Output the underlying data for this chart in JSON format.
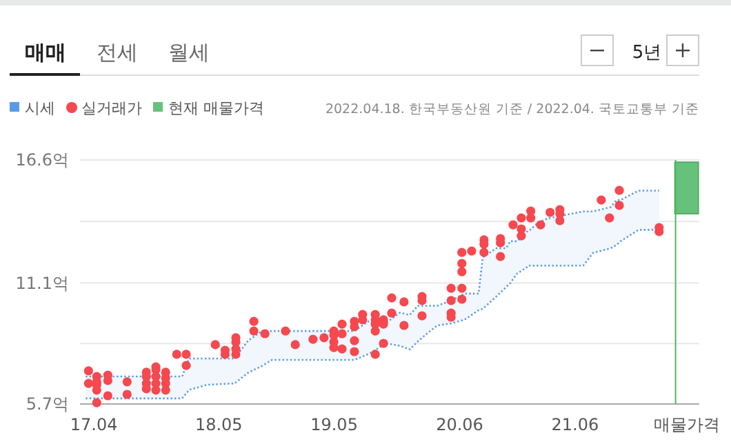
{
  "chart_data": {
    "type": "scatter",
    "annotations": [
      "매매",
      "전세",
      "월세",
      "5년",
      "2022.04.18. 한국부동산원 기준 / 2022.04. 국토교통부 기준"
    ],
    "xlim": [
      "2017-02-16",
      "2022-06-29"
    ],
    "xticks": [
      {
        "value": "2017-04-01",
        "label": "17.04"
      },
      {
        "value": "2018-05-01",
        "label": "18.05"
      },
      {
        "value": "2019-05-01",
        "label": "19.05"
      },
      {
        "value": "2020-06-01",
        "label": "20.06"
      },
      {
        "value": "2021-06-01",
        "label": "21.06"
      },
      {
        "value": "2022-05-20",
        "label": "매물가격"
      }
    ],
    "ylim": [
      5.7,
      16.6
    ],
    "yticks": [
      {
        "value": 5.7,
        "label": "5.7억"
      },
      {
        "value": 8.4,
        "label": null
      },
      {
        "value": 11.1,
        "label": "11.1억"
      },
      {
        "value": 13.85,
        "label": null
      },
      {
        "value": 16.6,
        "label": "16.6억"
      }
    ],
    "grid": "y",
    "legend": "top left",
    "ref_lines": [
      {
        "axis": "x",
        "value": "2022-04-15",
        "color": "#4cb85c"
      }
    ],
    "series": [
      {
        "type": "line",
        "name": "시세",
        "color": "#5b9be6",
        "line_style": "dotted",
        "marker": "none",
        "x": [
          "2017-03-06",
          "2018-01-05",
          "2018-01-27",
          "2018-03-25",
          "2018-06-20",
          "2018-08-02",
          "2018-09-15",
          "2018-10-16",
          "2019-07-04",
          "2019-08-17",
          "2019-10-13",
          "2019-11-25",
          "2019-12-26",
          "2020-01-21",
          "2020-02-20",
          "2020-03-22",
          "2020-05-05",
          "2020-06-17",
          "2020-07-31",
          "2020-08-13",
          "2020-09-25",
          "2020-10-26",
          "2020-11-08",
          "2020-11-30",
          "2020-12-30",
          "2021-01-04",
          "2021-02-03",
          "2021-03-06",
          "2021-06-27",
          "2021-07-28",
          "2021-09-22",
          "2021-10-10",
          "2021-10-23",
          "2021-12-19",
          "2022-02-22"
        ],
        "values": [
          6.93,
          6.93,
          7.73,
          7.73,
          7.73,
          8.53,
          8.96,
          8.96,
          8.96,
          9.39,
          9.33,
          9.78,
          9.68,
          10.09,
          10.09,
          10.09,
          10.32,
          10.63,
          10.63,
          12.25,
          12.66,
          12.66,
          12.97,
          12.97,
          13.4,
          13.4,
          13.79,
          13.99,
          14.3,
          14.3,
          14.5,
          14.81,
          14.81,
          15.23,
          15.23
        ],
        "upper": [
          6.93,
          6.93,
          7.73,
          7.73,
          7.73,
          8.53,
          8.96,
          8.96,
          8.96,
          9.39,
          9.33,
          9.78,
          9.68,
          10.09,
          10.09,
          10.09,
          10.32,
          10.63,
          10.63,
          12.25,
          12.66,
          12.66,
          12.97,
          12.97,
          13.4,
          13.4,
          13.79,
          13.99,
          14.3,
          14.3,
          14.5,
          14.81,
          14.81,
          15.23,
          15.23
        ],
        "lower": [
          5.95,
          5.95,
          6.33,
          6.56,
          6.62,
          7.1,
          7.4,
          7.67,
          7.67,
          7.93,
          8.41,
          8.3,
          8.14,
          8.5,
          8.86,
          9.21,
          9.3,
          9.47,
          9.89,
          9.95,
          10.5,
          10.92,
          11.1,
          11.53,
          11.8,
          11.88,
          11.88,
          11.88,
          11.88,
          12.45,
          12.66,
          12.8,
          12.97,
          13.48,
          13.48
        ]
      },
      {
        "type": "line",
        "color": "#5b9be6",
        "line_style": "dotted",
        "marker": "none",
        "x": [
          "2017-03-06",
          "2018-01-05",
          "2018-01-27",
          "2018-03-25",
          "2018-06-20",
          "2018-08-02",
          "2018-09-15",
          "2018-10-16",
          "2019-07-04",
          "2019-08-17",
          "2019-10-13",
          "2019-11-25",
          "2019-12-26",
          "2020-01-21",
          "2020-02-20",
          "2020-03-22",
          "2020-05-05",
          "2020-06-17",
          "2020-07-31",
          "2020-08-13",
          "2020-09-25",
          "2020-10-26",
          "2020-11-08",
          "2020-11-30",
          "2020-12-30",
          "2021-01-04",
          "2021-02-03",
          "2021-03-06",
          "2021-06-27",
          "2021-07-28",
          "2021-09-22",
          "2021-10-10",
          "2021-10-23",
          "2021-12-19",
          "2022-02-22"
        ],
        "values": [
          5.95,
          5.95,
          6.33,
          6.56,
          6.62,
          7.1,
          7.4,
          7.67,
          7.67,
          7.93,
          8.41,
          8.3,
          8.14,
          8.5,
          8.86,
          9.21,
          9.3,
          9.47,
          9.89,
          9.95,
          10.5,
          10.92,
          11.1,
          11.53,
          11.8,
          11.88,
          11.88,
          11.88,
          11.88,
          12.45,
          12.66,
          12.8,
          12.97,
          13.48,
          13.48
        ]
      },
      {
        "name": "실거래가",
        "color": "#f5484f",
        "marker": "circle",
        "x": [
          "2017-03-15",
          "2017-03-15",
          "2017-04-10",
          "2017-04-10",
          "2017-04-10",
          "2017-04-10",
          "2017-04-10",
          "2017-05-15",
          "2017-05-15",
          "2017-05-15",
          "2017-07-15",
          "2017-07-15",
          "2017-09-14",
          "2017-09-14",
          "2017-09-14",
          "2017-09-14",
          "2017-10-14",
          "2017-10-14",
          "2017-10-14",
          "2017-10-14",
          "2017-10-14",
          "2017-11-14",
          "2017-11-14",
          "2017-11-14",
          "2017-11-14",
          "2017-12-19",
          "2018-01-18",
          "2018-01-18",
          "2018-04-20",
          "2018-05-21",
          "2018-05-21",
          "2018-06-24",
          "2018-06-24",
          "2018-06-24",
          "2018-06-24",
          "2018-08-20",
          "2018-08-20",
          "2018-09-24",
          "2018-11-28",
          "2018-12-29",
          "2019-02-23",
          "2019-03-30",
          "2019-04-30",
          "2019-04-30",
          "2019-04-30",
          "2019-04-30",
          "2019-05-26",
          "2019-05-26",
          "2019-05-26",
          "2019-07-04",
          "2019-07-04",
          "2019-07-04",
          "2019-07-04",
          "2019-07-30",
          "2019-07-30",
          "2019-09-08",
          "2019-09-08",
          "2019-09-08",
          "2019-09-08",
          "2019-09-08",
          "2019-10-04",
          "2019-10-04",
          "2019-10-04",
          "2019-10-30",
          "2019-10-30",
          "2019-12-08",
          "2019-12-08",
          "2020-02-03",
          "2020-02-03",
          "2020-02-03",
          "2020-05-05",
          "2020-05-05",
          "2020-05-05",
          "2020-05-05",
          "2020-06-08",
          "2020-06-08",
          "2020-06-08",
          "2020-06-08",
          "2020-06-08",
          "2020-07-09",
          "2020-08-17",
          "2020-08-17",
          "2020-08-17",
          "2020-10-08",
          "2020-10-08",
          "2020-10-08",
          "2020-11-17",
          "2020-12-13",
          "2020-12-13",
          "2020-12-13",
          "2021-01-12",
          "2021-01-12",
          "2021-02-12",
          "2021-03-14",
          "2021-04-14",
          "2021-04-14",
          "2021-04-14",
          "2021-08-23",
          "2021-09-18",
          "2021-10-19",
          "2021-10-19",
          "2022-02-22",
          "2022-02-22"
        ],
        "values": [
          7.18,
          6.62,
          6.93,
          6.69,
          6.56,
          6.32,
          5.76,
          6.99,
          6.75,
          6.07,
          6.69,
          6.13,
          7.12,
          6.93,
          6.62,
          6.38,
          7.36,
          7.24,
          6.93,
          6.62,
          6.32,
          7.12,
          6.87,
          6.62,
          6.32,
          7.92,
          7.92,
          7.42,
          8.35,
          8.1,
          7.92,
          8.66,
          8.47,
          8.16,
          7.92,
          9.39,
          8.96,
          8.84,
          8.96,
          8.35,
          8.59,
          8.66,
          8.96,
          8.78,
          8.47,
          8.22,
          9.27,
          8.84,
          8.16,
          9.39,
          9.15,
          8.53,
          8.04,
          9.7,
          9.46,
          9.7,
          9.46,
          9.27,
          8.96,
          7.92,
          9.46,
          9.27,
          8.41,
          10.44,
          9.76,
          10.26,
          9.21,
          10.5,
          10.32,
          9.64,
          10.87,
          10.32,
          9.76,
          9.58,
          12.47,
          11.98,
          11.61,
          10.87,
          10.38,
          12.53,
          13.03,
          12.84,
          12.47,
          13.09,
          12.9,
          12.29,
          13.7,
          14.01,
          13.52,
          13.21,
          14.32,
          14.01,
          13.7,
          14.26,
          14.38,
          14.2,
          13.89,
          14.81,
          14.01,
          15.24,
          14.57,
          13.58,
          13.4
        ]
      },
      {
        "type": "bar",
        "name": "현재 매물가격",
        "color": "#66c27a",
        "x": [
          "2022-05-20"
        ],
        "base": [
          14.2
        ],
        "values": [
          2.3
        ]
      }
    ]
  }
}
